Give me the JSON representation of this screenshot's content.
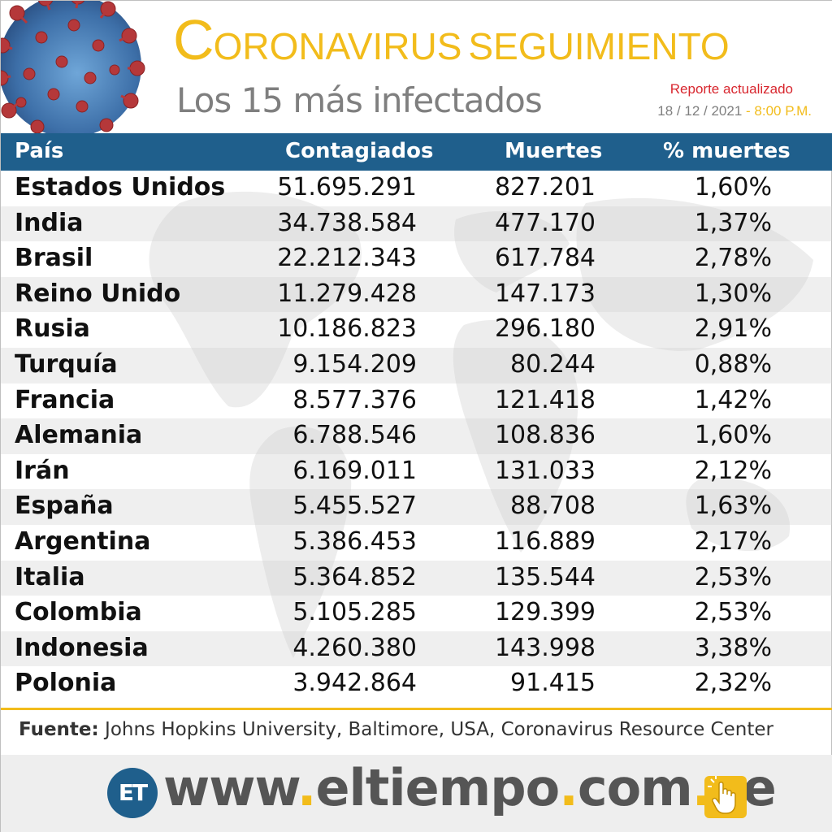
{
  "header": {
    "title_initial": "C",
    "title_rest": "ORONAVIRUS",
    "title_second": "SEGUIMIENTO",
    "subtitle": "Los 15 más infectados",
    "report_label": "Reporte actualizado",
    "report_date": "18 / 12 / 2021",
    "report_sep": "-",
    "report_time": "8:00 P.M."
  },
  "table": {
    "columns": [
      "País",
      "Contagiados",
      "Muertes",
      "% muertes"
    ],
    "rows": [
      {
        "country": "Estados Unidos",
        "cases": "51.695.291",
        "deaths": "827.201",
        "pct": "1,60%"
      },
      {
        "country": "India",
        "cases": "34.738.584",
        "deaths": "477.170",
        "pct": "1,37%"
      },
      {
        "country": "Brasil",
        "cases": "22.212.343",
        "deaths": "617.784",
        "pct": "2,78%"
      },
      {
        "country": "Reino Unido",
        "cases": "11.279.428",
        "deaths": "147.173",
        "pct": "1,30%"
      },
      {
        "country": "Rusia",
        "cases": "10.186.823",
        "deaths": "296.180",
        "pct": "2,91%"
      },
      {
        "country": "Turquía",
        "cases": "9.154.209",
        "deaths": "80.244",
        "pct": "0,88%"
      },
      {
        "country": "Francia",
        "cases": "8.577.376",
        "deaths": "121.418",
        "pct": "1,42%"
      },
      {
        "country": "Alemania",
        "cases": "6.788.546",
        "deaths": "108.836",
        "pct": "1,60%"
      },
      {
        "country": "Irán",
        "cases": "6.169.011",
        "deaths": "131.033",
        "pct": "2,12%"
      },
      {
        "country": "España",
        "cases": "5.455.527",
        "deaths": "88.708",
        "pct": "1,63%"
      },
      {
        "country": "Argentina",
        "cases": "5.386.453",
        "deaths": "116.889",
        "pct": "2,17%"
      },
      {
        "country": "Italia",
        "cases": "5.364.852",
        "deaths": "135.544",
        "pct": "2,53%"
      },
      {
        "country": "Colombia",
        "cases": "5.105.285",
        "deaths": "129.399",
        "pct": "2,53%"
      },
      {
        "country": "Indonesia",
        "cases": "4.260.380",
        "deaths": "143.998",
        "pct": "3,38%"
      },
      {
        "country": "Polonia",
        "cases": "3.942.864",
        "deaths": "91.415",
        "pct": "2,32%"
      }
    ]
  },
  "source": {
    "label": "Fuente:",
    "text": "Johns Hopkins University, Baltimore, USA, Coronavirus Resource Center"
  },
  "footer": {
    "logo_text": "ET",
    "url_parts": [
      "www",
      ".",
      "eltiempo",
      ".",
      "com",
      ".",
      "ve"
    ]
  },
  "colors": {
    "brand_yellow": "#f2bc1b",
    "header_blue": "#1f5f8c",
    "report_red": "#d8262e",
    "gray_text": "#7f7f7f"
  },
  "icons": [
    "coronavirus-illustration",
    "world-map-watermark",
    "et-logo",
    "hand-pointer-icon"
  ]
}
